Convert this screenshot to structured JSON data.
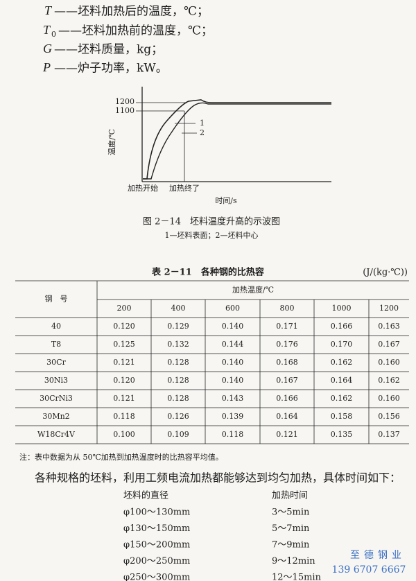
{
  "definitions": [
    {
      "symbol": "T",
      "text": "——坯料加热后的温度，℃；"
    },
    {
      "symbol": "T",
      "sub": "0",
      "text": "——坯料加热前的温度，℃；"
    },
    {
      "symbol": "G",
      "text": "——坯料质量，kg；"
    },
    {
      "symbol": "P",
      "text": "——炉子功率，kW。"
    }
  ],
  "figure": {
    "y_axis_label": "温度/℃",
    "x_axis_label": "时间/s",
    "y_marks": [
      "1200",
      "1100"
    ],
    "curve_labels": [
      "1",
      "2"
    ],
    "x_marks": [
      "加热开始",
      "加热终了"
    ],
    "caption": "图 2－14　坯料温度升高的示波图",
    "legend": "1—坯料表面；2—坯料中心"
  },
  "table": {
    "title": "表 2－11　各种钢的比热容",
    "unit": "(J/(kg·℃))",
    "row_header": "钢　号",
    "group_header": "加热温度/℃",
    "columns": [
      "200",
      "400",
      "600",
      "800",
      "1000",
      "1200"
    ],
    "rows": [
      [
        "40",
        "0.120",
        "0.129",
        "0.140",
        "0.171",
        "0.166",
        "0.163"
      ],
      [
        "T8",
        "0.125",
        "0.132",
        "0.144",
        "0.176",
        "0.170",
        "0.167"
      ],
      [
        "30Cr",
        "0.121",
        "0.128",
        "0.140",
        "0.168",
        "0.162",
        "0.160"
      ],
      [
        "30Ni3",
        "0.120",
        "0.128",
        "0.140",
        "0.167",
        "0.164",
        "0.162"
      ],
      [
        "30CrNi3",
        "0.121",
        "0.128",
        "0.143",
        "0.166",
        "0.162",
        "0.160"
      ],
      [
        "30Mn2",
        "0.118",
        "0.126",
        "0.139",
        "0.164",
        "0.158",
        "0.156"
      ],
      [
        "W18Cr4V",
        "0.100",
        "0.109",
        "0.118",
        "0.121",
        "0.135",
        "0.137"
      ]
    ],
    "note": "注：表中数据为从 50℃加热到加热温度时的比热容平均值。"
  },
  "heating": {
    "intro": "各种规格的坯料，利用工频电流加热都能够达到均匀加热，具体时间如下：",
    "headers": [
      "坯料的直径",
      "加热时间"
    ],
    "rows": [
      [
        "φ100～130mm",
        "3～5min"
      ],
      [
        "φ130～150mm",
        "5～7min"
      ],
      [
        "φ150～200mm",
        "7～9min"
      ],
      [
        "φ200～250mm",
        "9～12min"
      ],
      [
        "φ250～300mm",
        "12～15min"
      ]
    ]
  },
  "watermark": {
    "company": "至德钢业",
    "phone": "139 6707 6667"
  }
}
